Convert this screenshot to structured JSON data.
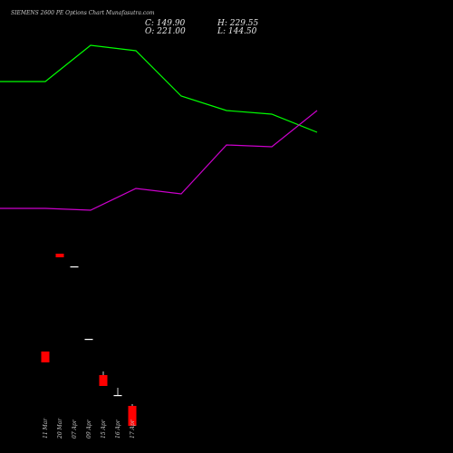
{
  "header": {
    "title": "SIEMENS 2600 PE Options Chart Munafasutra.com",
    "close": "C: 149.90",
    "high": "H: 229.55",
    "open": "O: 221.00",
    "low": "L: 144.50"
  },
  "chart_data": {
    "type": "candlestick",
    "title": "SIEMENS 2600 PE Options Chart Munafasutra.com",
    "x_labels": [
      "11 Mar",
      "20 Mar",
      "07 Apr",
      "09 Apr",
      "15 Apr",
      "16 Apr",
      "17 Apr"
    ],
    "ohlc": [
      {
        "open": 151.0,
        "high": 151.0,
        "low": 145.0,
        "close": 145.0
      },
      {
        "open": 205.0,
        "high": 205.0,
        "low": 203.0,
        "close": 203.0
      },
      {
        "open": 198.0,
        "high": 198.0,
        "low": 198.0,
        "close": 198.0
      },
      {
        "open": 158.0,
        "high": 158.0,
        "low": 158.0,
        "close": 158.0
      },
      {
        "open": 138.0,
        "high": 140.0,
        "low": 132.0,
        "close": 132.0
      },
      {
        "open": 127.0,
        "high": 131.0,
        "low": 127.0,
        "close": 127.0
      },
      {
        "open": 121.0,
        "high": 122.0,
        "low": 110.0,
        "close": 110.0
      }
    ],
    "lines": [
      {
        "color": "#00ff00",
        "points": [
          {
            "x": 0,
            "y": 300
          },
          {
            "x": 1,
            "y": 300
          },
          {
            "x": 2,
            "y": 320
          },
          {
            "x": 3,
            "y": 317
          },
          {
            "x": 4,
            "y": 292
          },
          {
            "x": 5,
            "y": 284
          },
          {
            "x": 6,
            "y": 282
          },
          {
            "x": 7,
            "y": 272
          }
        ]
      },
      {
        "color": "#cc00cc",
        "points": [
          {
            "x": 0,
            "y": 230
          },
          {
            "x": 1,
            "y": 230
          },
          {
            "x": 2,
            "y": 229
          },
          {
            "x": 3,
            "y": 241
          },
          {
            "x": 4,
            "y": 238
          },
          {
            "x": 5,
            "y": 265
          },
          {
            "x": 6,
            "y": 264
          },
          {
            "x": 7,
            "y": 284
          }
        ]
      }
    ],
    "colors": {
      "up": "#00ff00",
      "down": "#ff0000",
      "background": "#000000",
      "wick": "#ffffff"
    },
    "grid": false,
    "legend": "none"
  }
}
